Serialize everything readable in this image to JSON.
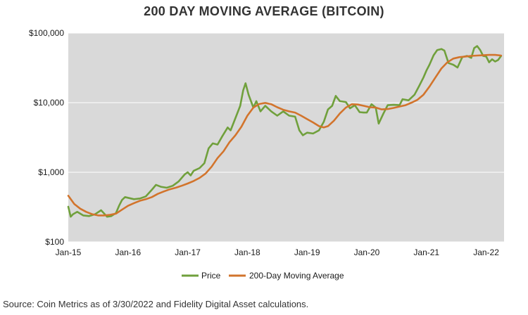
{
  "chart_data": {
    "type": "line",
    "title": "200 DAY MOVING AVERAGE (BITCOIN)",
    "yscale": "log",
    "ylim": [
      100,
      100000
    ],
    "xlim": [
      2015.0,
      2022.3
    ],
    "y_ticks": [
      {
        "value": 100,
        "label": "$100"
      },
      {
        "value": 1000,
        "label": "$1,000"
      },
      {
        "value": 10000,
        "label": "$10,000"
      },
      {
        "value": 100000,
        "label": "$100,000"
      }
    ],
    "x_ticks": [
      {
        "value": 2015,
        "label": "Jan-15"
      },
      {
        "value": 2016,
        "label": "Jan-16"
      },
      {
        "value": 2017,
        "label": "Jan-17"
      },
      {
        "value": 2018,
        "label": "Jan-18"
      },
      {
        "value": 2019,
        "label": "Jan-19"
      },
      {
        "value": 2020,
        "label": "Jan-20"
      },
      {
        "value": 2021,
        "label": "Jan-21"
      },
      {
        "value": 2022,
        "label": "Jan-22"
      }
    ],
    "series": [
      {
        "name": "Price",
        "color": "#70a03c",
        "points": [
          [
            2015.0,
            320
          ],
          [
            2015.04,
            230
          ],
          [
            2015.08,
            250
          ],
          [
            2015.15,
            270
          ],
          [
            2015.25,
            240
          ],
          [
            2015.35,
            235
          ],
          [
            2015.45,
            250
          ],
          [
            2015.55,
            285
          ],
          [
            2015.65,
            230
          ],
          [
            2015.72,
            235
          ],
          [
            2015.8,
            260
          ],
          [
            2015.85,
            330
          ],
          [
            2015.9,
            400
          ],
          [
            2015.95,
            440
          ],
          [
            2016.0,
            430
          ],
          [
            2016.1,
            410
          ],
          [
            2016.2,
            420
          ],
          [
            2016.3,
            450
          ],
          [
            2016.4,
            560
          ],
          [
            2016.47,
            660
          ],
          [
            2016.55,
            620
          ],
          [
            2016.65,
            600
          ],
          [
            2016.75,
            640
          ],
          [
            2016.85,
            740
          ],
          [
            2016.95,
            930
          ],
          [
            2017.0,
            1000
          ],
          [
            2017.05,
            900
          ],
          [
            2017.1,
            1050
          ],
          [
            2017.2,
            1150
          ],
          [
            2017.28,
            1350
          ],
          [
            2017.35,
            2200
          ],
          [
            2017.42,
            2600
          ],
          [
            2017.5,
            2500
          ],
          [
            2017.58,
            3300
          ],
          [
            2017.67,
            4400
          ],
          [
            2017.72,
            4000
          ],
          [
            2017.8,
            6000
          ],
          [
            2017.88,
            9000
          ],
          [
            2017.93,
            15000
          ],
          [
            2017.97,
            19000
          ],
          [
            2018.02,
            13000
          ],
          [
            2018.1,
            8500
          ],
          [
            2018.15,
            10500
          ],
          [
            2018.22,
            7500
          ],
          [
            2018.3,
            9000
          ],
          [
            2018.4,
            7500
          ],
          [
            2018.5,
            6500
          ],
          [
            2018.6,
            7500
          ],
          [
            2018.7,
            6500
          ],
          [
            2018.8,
            6300
          ],
          [
            2018.87,
            4000
          ],
          [
            2018.93,
            3400
          ],
          [
            2019.0,
            3700
          ],
          [
            2019.1,
            3600
          ],
          [
            2019.2,
            4000
          ],
          [
            2019.28,
            5300
          ],
          [
            2019.35,
            8000
          ],
          [
            2019.42,
            9000
          ],
          [
            2019.48,
            12500
          ],
          [
            2019.55,
            10500
          ],
          [
            2019.65,
            10200
          ],
          [
            2019.72,
            8300
          ],
          [
            2019.8,
            9200
          ],
          [
            2019.88,
            7300
          ],
          [
            2019.95,
            7200
          ],
          [
            2020.0,
            7200
          ],
          [
            2020.08,
            9500
          ],
          [
            2020.15,
            8500
          ],
          [
            2020.2,
            5000
          ],
          [
            2020.28,
            7000
          ],
          [
            2020.35,
            9200
          ],
          [
            2020.45,
            9300
          ],
          [
            2020.55,
            9200
          ],
          [
            2020.6,
            11200
          ],
          [
            2020.7,
            10800
          ],
          [
            2020.8,
            13000
          ],
          [
            2020.88,
            17500
          ],
          [
            2020.95,
            23000
          ],
          [
            2021.0,
            29000
          ],
          [
            2021.05,
            35000
          ],
          [
            2021.12,
            48000
          ],
          [
            2021.18,
            57000
          ],
          [
            2021.25,
            59000
          ],
          [
            2021.3,
            56000
          ],
          [
            2021.37,
            37000
          ],
          [
            2021.45,
            35000
          ],
          [
            2021.52,
            32000
          ],
          [
            2021.6,
            45000
          ],
          [
            2021.68,
            47000
          ],
          [
            2021.75,
            44000
          ],
          [
            2021.8,
            61000
          ],
          [
            2021.85,
            65000
          ],
          [
            2021.9,
            57000
          ],
          [
            2021.95,
            47000
          ],
          [
            2022.0,
            46000
          ],
          [
            2022.05,
            38000
          ],
          [
            2022.1,
            42000
          ],
          [
            2022.15,
            39000
          ],
          [
            2022.2,
            41000
          ],
          [
            2022.25,
            47000
          ]
        ]
      },
      {
        "name": "200-Day Moving Average",
        "color": "#d2742c",
        "points": [
          [
            2015.0,
            460
          ],
          [
            2015.1,
            350
          ],
          [
            2015.2,
            300
          ],
          [
            2015.3,
            270
          ],
          [
            2015.4,
            250
          ],
          [
            2015.5,
            240
          ],
          [
            2015.6,
            240
          ],
          [
            2015.7,
            245
          ],
          [
            2015.8,
            255
          ],
          [
            2015.9,
            290
          ],
          [
            2016.0,
            330
          ],
          [
            2016.1,
            360
          ],
          [
            2016.2,
            390
          ],
          [
            2016.3,
            410
          ],
          [
            2016.4,
            440
          ],
          [
            2016.5,
            490
          ],
          [
            2016.6,
            530
          ],
          [
            2016.7,
            570
          ],
          [
            2016.8,
            600
          ],
          [
            2016.9,
            640
          ],
          [
            2017.0,
            690
          ],
          [
            2017.1,
            750
          ],
          [
            2017.2,
            830
          ],
          [
            2017.3,
            960
          ],
          [
            2017.4,
            1200
          ],
          [
            2017.5,
            1600
          ],
          [
            2017.6,
            2000
          ],
          [
            2017.7,
            2700
          ],
          [
            2017.8,
            3400
          ],
          [
            2017.9,
            4500
          ],
          [
            2018.0,
            6500
          ],
          [
            2018.1,
            8500
          ],
          [
            2018.2,
            9600
          ],
          [
            2018.3,
            9900
          ],
          [
            2018.4,
            9500
          ],
          [
            2018.5,
            8600
          ],
          [
            2018.6,
            7900
          ],
          [
            2018.7,
            7500
          ],
          [
            2018.8,
            7200
          ],
          [
            2018.9,
            6500
          ],
          [
            2019.0,
            5800
          ],
          [
            2019.1,
            5200
          ],
          [
            2019.2,
            4600
          ],
          [
            2019.28,
            4400
          ],
          [
            2019.35,
            4600
          ],
          [
            2019.45,
            5500
          ],
          [
            2019.55,
            7000
          ],
          [
            2019.65,
            8500
          ],
          [
            2019.75,
            9500
          ],
          [
            2019.85,
            9400
          ],
          [
            2019.95,
            9000
          ],
          [
            2020.05,
            8600
          ],
          [
            2020.15,
            8500
          ],
          [
            2020.25,
            8000
          ],
          [
            2020.35,
            8100
          ],
          [
            2020.45,
            8400
          ],
          [
            2020.55,
            8800
          ],
          [
            2020.65,
            9200
          ],
          [
            2020.75,
            10000
          ],
          [
            2020.85,
            11000
          ],
          [
            2020.95,
            13000
          ],
          [
            2021.05,
            17000
          ],
          [
            2021.15,
            23000
          ],
          [
            2021.25,
            31000
          ],
          [
            2021.35,
            38000
          ],
          [
            2021.45,
            43000
          ],
          [
            2021.55,
            45000
          ],
          [
            2021.65,
            46000
          ],
          [
            2021.75,
            47000
          ],
          [
            2021.85,
            47500
          ],
          [
            2021.95,
            48000
          ],
          [
            2022.05,
            48500
          ],
          [
            2022.15,
            48500
          ],
          [
            2022.25,
            47500
          ]
        ]
      }
    ]
  },
  "source_text": "Source: Coin Metrics as of 3/30/2022 and Fidelity Digital Asset calculations."
}
